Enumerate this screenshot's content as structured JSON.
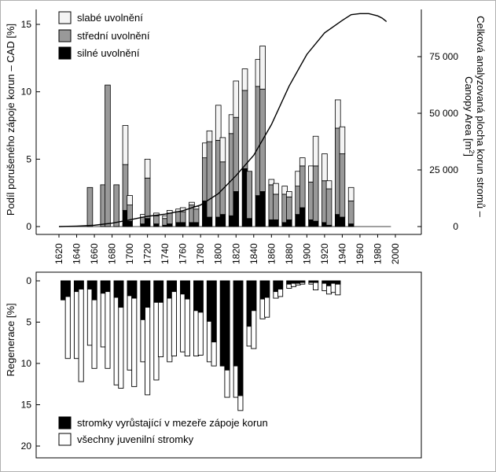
{
  "chart_data": [
    {
      "type": "bar",
      "stacked": true,
      "panel": "top",
      "ylabel": "Podíl porušeného zápoje korun – CAD [%]",
      "ylabel2": "Celková analyzovaná plocha korun stromů – Canopy Area [m²]",
      "ylabel2_lines": [
        "Celková analyzovaná plocha korun stromů –",
        "Canopy Area [m",
        "2",
        "]"
      ],
      "ylim": [
        0,
        15
      ],
      "y2lim": [
        0,
        95000
      ],
      "yticks": [
        "0",
        "5",
        "10",
        "15"
      ],
      "y2ticks": [
        {
          "value": 0,
          "label": "0"
        },
        {
          "value": 25000,
          "label": "25 000"
        },
        {
          "value": 50000,
          "label": "50 000"
        },
        {
          "value": 75000,
          "label": "75 000"
        }
      ],
      "xticks": [
        "1620",
        "1640",
        "1660",
        "1680",
        "1700",
        "1720",
        "1740",
        "1760",
        "1780",
        "1800",
        "1820",
        "1840",
        "1860",
        "1880",
        "1900",
        "1920",
        "1940",
        "1960",
        "1980",
        "2000"
      ],
      "legend": [
        "slabé uvolnění",
        "střední uvolnění",
        "silné uvolnění"
      ],
      "legend_position": "top-left",
      "colors": {
        "slabe": "#f4f4f4",
        "stredni": "#999999",
        "silne": "#000000"
      },
      "bars": [
        {
          "x": 1655,
          "silne": 0.0,
          "stredni": 2.9,
          "slabe": 0.0
        },
        {
          "x": 1670,
          "silne": 0.0,
          "stredni": 3.1,
          "slabe": 0.0
        },
        {
          "x": 1675,
          "silne": 0.0,
          "stredni": 10.5,
          "slabe": 0.0
        },
        {
          "x": 1685,
          "silne": 0.0,
          "stredni": 3.1,
          "slabe": 0.0
        },
        {
          "x": 1695,
          "silne": 1.2,
          "stredni": 3.4,
          "slabe": 2.9
        },
        {
          "x": 1700,
          "silne": 0.4,
          "stredni": 1.2,
          "slabe": 0.7
        },
        {
          "x": 1715,
          "silne": 0.2,
          "stredni": 0.5,
          "slabe": 0.2
        },
        {
          "x": 1720,
          "silne": 0.6,
          "stredni": 3.0,
          "slabe": 1.4
        },
        {
          "x": 1730,
          "silne": 0.2,
          "stredni": 0.6,
          "slabe": 0.2
        },
        {
          "x": 1740,
          "silne": 0.1,
          "stredni": 0.5,
          "slabe": 0.2
        },
        {
          "x": 1745,
          "silne": 0.2,
          "stredni": 0.8,
          "slabe": 0.2
        },
        {
          "x": 1755,
          "silne": 0.3,
          "stredni": 0.8,
          "slabe": 0.2
        },
        {
          "x": 1760,
          "silne": 0.3,
          "stredni": 0.8,
          "slabe": 0.3
        },
        {
          "x": 1770,
          "silne": 0.3,
          "stredni": 1.3,
          "slabe": 0.2
        },
        {
          "x": 1775,
          "silne": 0.3,
          "stredni": 1.0,
          "slabe": 0.2
        },
        {
          "x": 1785,
          "silne": 1.9,
          "stredni": 3.2,
          "slabe": 1.1
        },
        {
          "x": 1790,
          "silne": 0.7,
          "stredni": 5.6,
          "slabe": 0.8
        },
        {
          "x": 1800,
          "silne": 0.7,
          "stredni": 5.7,
          "slabe": 2.6
        },
        {
          "x": 1805,
          "silne": 0.9,
          "stredni": 3.9,
          "slabe": 1.8
        },
        {
          "x": 1815,
          "silne": 0.8,
          "stredni": 6.1,
          "slabe": 1.4
        },
        {
          "x": 1820,
          "silne": 2.6,
          "stredni": 5.5,
          "slabe": 2.7
        },
        {
          "x": 1830,
          "silne": 4.3,
          "stredni": 5.8,
          "slabe": 1.6
        },
        {
          "x": 1835,
          "silne": 0.6,
          "stredni": 3.5,
          "slabe": 0.0
        },
        {
          "x": 1845,
          "silne": 2.3,
          "stredni": 8.1,
          "slabe": 2.0
        },
        {
          "x": 1850,
          "silne": 2.6,
          "stredni": 7.6,
          "slabe": 3.2
        },
        {
          "x": 1860,
          "silne": 0.5,
          "stredni": 2.6,
          "slabe": 0.4
        },
        {
          "x": 1865,
          "silne": 0.5,
          "stredni": 1.9,
          "slabe": 0.8
        },
        {
          "x": 1875,
          "silne": 0.3,
          "stredni": 2.1,
          "slabe": 0.6
        },
        {
          "x": 1880,
          "silne": 0.5,
          "stredni": 1.7,
          "slabe": 0.4
        },
        {
          "x": 1890,
          "silne": 0.9,
          "stredni": 2.1,
          "slabe": 1.1
        },
        {
          "x": 1895,
          "silne": 1.4,
          "stredni": 3.1,
          "slabe": 0.6
        },
        {
          "x": 1905,
          "silne": 0.5,
          "stredni": 2.8,
          "slabe": 1.2
        },
        {
          "x": 1910,
          "silne": 0.4,
          "stredni": 4.1,
          "slabe": 2.2
        },
        {
          "x": 1920,
          "silne": 0.3,
          "stredni": 3.1,
          "slabe": 2.0
        },
        {
          "x": 1925,
          "silne": 0.1,
          "stredni": 2.7,
          "slabe": 0.6
        },
        {
          "x": 1935,
          "silne": 0.9,
          "stredni": 6.4,
          "slabe": 2.1
        },
        {
          "x": 1940,
          "silne": 0.7,
          "stredni": 4.7,
          "slabe": 2.0
        },
        {
          "x": 1950,
          "silne": 0.2,
          "stredni": 1.7,
          "slabe": 1.0
        }
      ],
      "line_series": {
        "name": "Canopy Area",
        "x": [
          1620,
          1640,
          1660,
          1680,
          1700,
          1720,
          1740,
          1760,
          1780,
          1800,
          1820,
          1840,
          1860,
          1880,
          1900,
          1920,
          1940,
          1950,
          1960,
          1970,
          1980,
          1985,
          1990
        ],
        "values": [
          0,
          200,
          600,
          1500,
          3000,
          4500,
          5500,
          7000,
          9500,
          14500,
          22500,
          31500,
          45000,
          62000,
          76000,
          85500,
          91000,
          93500,
          94000,
          94000,
          93000,
          92000,
          90500
        ]
      }
    },
    {
      "type": "bar",
      "panel": "bottom",
      "ylabel": "Regenerace [%]",
      "ylim": [
        0,
        20
      ],
      "inverted": true,
      "yticks": [
        "0",
        "5",
        "10",
        "15",
        "20"
      ],
      "legend": [
        "stromky vyrůstající v mezeře zápoje korun",
        "všechny juvenilní stromky"
      ],
      "legend_position": "bottom-left",
      "colors": {
        "gap": "#000000",
        "all": "#ffffff"
      },
      "bars": [
        {
          "x": 1625,
          "gap": 2.3,
          "all": 2.3
        },
        {
          "x": 1630,
          "gap": 1.9,
          "all": 9.4
        },
        {
          "x": 1640,
          "gap": 1.3,
          "all": 9.4
        },
        {
          "x": 1645,
          "gap": 1.0,
          "all": 12.2
        },
        {
          "x": 1655,
          "gap": 1.0,
          "all": 7.8
        },
        {
          "x": 1660,
          "gap": 2.3,
          "all": 10.6
        },
        {
          "x": 1670,
          "gap": 1.5,
          "all": 8.0
        },
        {
          "x": 1675,
          "gap": 1.3,
          "all": 10.6
        },
        {
          "x": 1685,
          "gap": 2.0,
          "all": 12.6
        },
        {
          "x": 1690,
          "gap": 3.2,
          "all": 13.0
        },
        {
          "x": 1700,
          "gap": 1.8,
          "all": 10.8
        },
        {
          "x": 1705,
          "gap": 2.1,
          "all": 12.8
        },
        {
          "x": 1715,
          "gap": 4.7,
          "all": 9.8
        },
        {
          "x": 1720,
          "gap": 3.2,
          "all": 13.8
        },
        {
          "x": 1730,
          "gap": 2.6,
          "all": 12.0
        },
        {
          "x": 1735,
          "gap": 2.6,
          "all": 9.2
        },
        {
          "x": 1745,
          "gap": 2.1,
          "all": 9.8
        },
        {
          "x": 1750,
          "gap": 1.3,
          "all": 9.1
        },
        {
          "x": 1760,
          "gap": 1.6,
          "all": 8.6
        },
        {
          "x": 1765,
          "gap": 2.2,
          "all": 9.1
        },
        {
          "x": 1775,
          "gap": 3.6,
          "all": 9.1
        },
        {
          "x": 1780,
          "gap": 3.8,
          "all": 9.0
        },
        {
          "x": 1790,
          "gap": 4.9,
          "all": 9.8
        },
        {
          "x": 1795,
          "gap": 7.4,
          "all": 10.3
        },
        {
          "x": 1805,
          "gap": 10.3,
          "all": 10.3
        },
        {
          "x": 1810,
          "gap": 10.8,
          "all": 14.1
        },
        {
          "x": 1820,
          "gap": 10.3,
          "all": 14.1
        },
        {
          "x": 1825,
          "gap": 13.9,
          "all": 15.7
        },
        {
          "x": 1835,
          "gap": 5.5,
          "all": 7.9
        },
        {
          "x": 1840,
          "gap": 3.6,
          "all": 8.2
        },
        {
          "x": 1850,
          "gap": 2.2,
          "all": 4.6
        },
        {
          "x": 1855,
          "gap": 2.0,
          "all": 4.4
        },
        {
          "x": 1865,
          "gap": 1.3,
          "all": 2.1
        },
        {
          "x": 1870,
          "gap": 1.0,
          "all": 1.9
        },
        {
          "x": 1880,
          "gap": 0.4,
          "all": 0.9
        },
        {
          "x": 1885,
          "gap": 0.3,
          "all": 0.7
        },
        {
          "x": 1890,
          "gap": 0.3,
          "all": 0.5
        },
        {
          "x": 1895,
          "gap": 0.2,
          "all": 0.4
        },
        {
          "x": 1905,
          "gap": 0.2,
          "all": 0.4
        },
        {
          "x": 1910,
          "gap": 0.2,
          "all": 1.1
        },
        {
          "x": 1920,
          "gap": 0.3,
          "all": 1.2
        },
        {
          "x": 1925,
          "gap": 0.6,
          "all": 1.6
        },
        {
          "x": 1930,
          "gap": 0.3,
          "all": 1.4
        },
        {
          "x": 1935,
          "gap": 0.4,
          "all": 1.7
        }
      ]
    }
  ]
}
